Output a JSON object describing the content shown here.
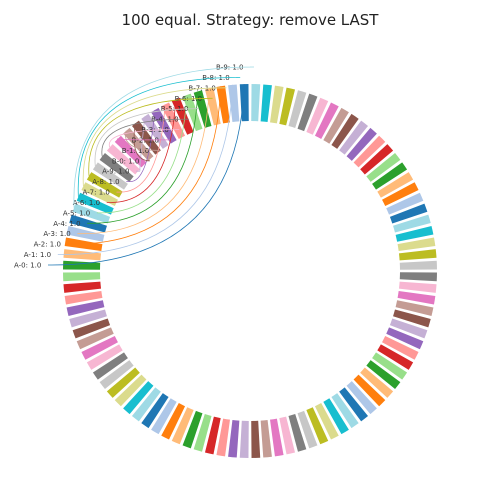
{
  "chart_data": {
    "type": "pie",
    "variant": "donut",
    "title": "100 equal. Strategy: remove LAST",
    "slice_count": 100,
    "value_each": 1.0,
    "start_angle_deg": 90,
    "direction": "clockwise",
    "palette": [
      "#1f77b4",
      "#aec7e8",
      "#ff7f0e",
      "#ffbb78",
      "#2ca02c",
      "#98df8a",
      "#d62728",
      "#ff9896",
      "#9467bd",
      "#c5b0d5",
      "#8c564b",
      "#c49c94",
      "#e377c2",
      "#f7b6d2",
      "#7f7f7f",
      "#c7c7c7",
      "#bcbd22",
      "#dbdb8d",
      "#17becf",
      "#9edae5"
    ],
    "visible_labels": [
      {
        "name": "A-0",
        "value": "1.0",
        "text": "A-0: 1.0"
      },
      {
        "name": "A-1",
        "value": "1.0",
        "text": "A-1: 1.0"
      },
      {
        "name": "A-2",
        "value": "1.0",
        "text": "A-2: 1.0"
      },
      {
        "name": "A-3",
        "value": "1.0",
        "text": "A-3: 1.0"
      },
      {
        "name": "A-4",
        "value": "1.0",
        "text": "A-4: 1.0"
      },
      {
        "name": "A-5",
        "value": "1.0",
        "text": "A-5: 1.0"
      },
      {
        "name": "A-6",
        "value": "1.0",
        "text": "A-6: 1.0"
      },
      {
        "name": "A-7",
        "value": "1.0",
        "text": "A-7: 1.0"
      },
      {
        "name": "A-8",
        "value": "1.0",
        "text": "A-8: 1.0"
      },
      {
        "name": "A-9",
        "value": "1.0",
        "text": "A-9: 1.0"
      },
      {
        "name": "B-0",
        "value": "1.0",
        "text": "B-0: 1.0"
      },
      {
        "name": "B-1",
        "value": "1.0",
        "text": "B-1: 1.0"
      },
      {
        "name": "B-2",
        "value": "1.0",
        "text": "B-2: 1.0"
      },
      {
        "name": "B-3",
        "value": "1.0",
        "text": "B-3: 1.0"
      },
      {
        "name": "B-4",
        "value": "1.0",
        "text": "B-4: 1.0"
      },
      {
        "name": "B-5",
        "value": "1.0",
        "text": "B-5: 1.0"
      },
      {
        "name": "B-6",
        "value": "1.0",
        "text": "B-6: 1.0"
      },
      {
        "name": "B-7",
        "value": "1.0",
        "text": "B-7: 1.0"
      },
      {
        "name": "B-8",
        "value": "1.0",
        "text": "B-8: 1.0"
      },
      {
        "name": "B-9",
        "value": "1.0",
        "text": "B-9: 1.0"
      }
    ]
  }
}
